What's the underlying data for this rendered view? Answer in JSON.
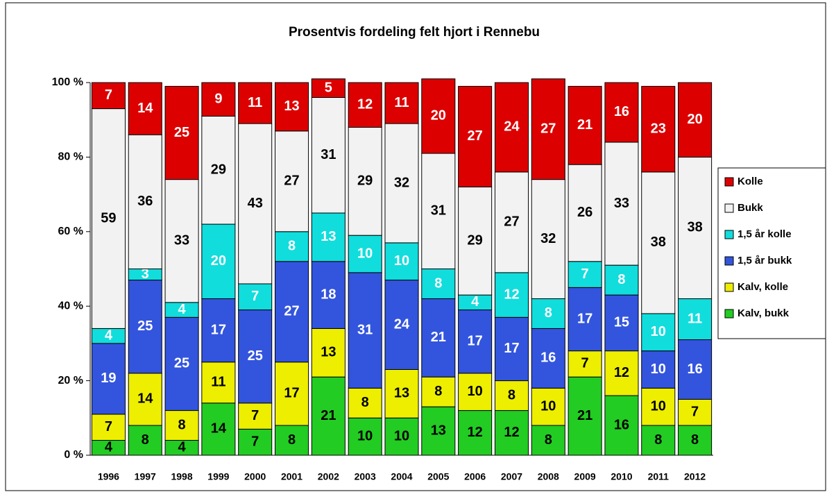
{
  "chart_data": {
    "type": "stacked_bar",
    "title": "Prosentvis fordeling felt hjort i Rennebu",
    "categories": [
      "1996",
      "1997",
      "1998",
      "1999",
      "2000",
      "2001",
      "2002",
      "2003",
      "2004",
      "2005",
      "2006",
      "2007",
      "2008",
      "2009",
      "2010",
      "2011",
      "2012"
    ],
    "series": [
      {
        "name": "Kalv, bukk",
        "color": "#22cc22",
        "values": [
          4,
          8,
          4,
          14,
          7,
          8,
          21,
          10,
          10,
          13,
          12,
          12,
          8,
          21,
          16,
          8,
          8
        ]
      },
      {
        "name": "Kalv, kolle",
        "color": "#eeee00",
        "values": [
          7,
          14,
          8,
          11,
          7,
          17,
          13,
          8,
          13,
          8,
          10,
          8,
          10,
          7,
          12,
          10,
          7
        ]
      },
      {
        "name": "1,5 år bukk",
        "color": "#3355dd",
        "values": [
          19,
          25,
          25,
          17,
          25,
          27,
          18,
          31,
          24,
          21,
          17,
          17,
          16,
          17,
          15,
          10,
          16
        ]
      },
      {
        "name": "1,5 år kolle",
        "color": "#11dddd",
        "values": [
          4,
          3,
          4,
          20,
          7,
          8,
          13,
          10,
          10,
          8,
          4,
          12,
          8,
          7,
          8,
          10,
          11
        ]
      },
      {
        "name": "Bukk",
        "color": "#f2f2f2",
        "values": [
          59,
          36,
          33,
          29,
          43,
          27,
          31,
          29,
          32,
          31,
          29,
          27,
          32,
          26,
          33,
          38,
          38
        ]
      },
      {
        "name": "Kolle",
        "color": "#dd0000",
        "values": [
          7,
          14,
          25,
          9,
          11,
          13,
          5,
          12,
          11,
          20,
          27,
          24,
          27,
          21,
          16,
          23,
          20
        ]
      }
    ],
    "ylim": [
      0,
      100
    ],
    "yticks": [
      {
        "value": 0,
        "label": "0 %"
      },
      {
        "value": 20,
        "label": "20 %"
      },
      {
        "value": 40,
        "label": "40 %"
      },
      {
        "value": 60,
        "label": "60 %"
      },
      {
        "value": 80,
        "label": "80 %"
      },
      {
        "value": 100,
        "label": "100 %"
      }
    ],
    "legend": "right"
  }
}
